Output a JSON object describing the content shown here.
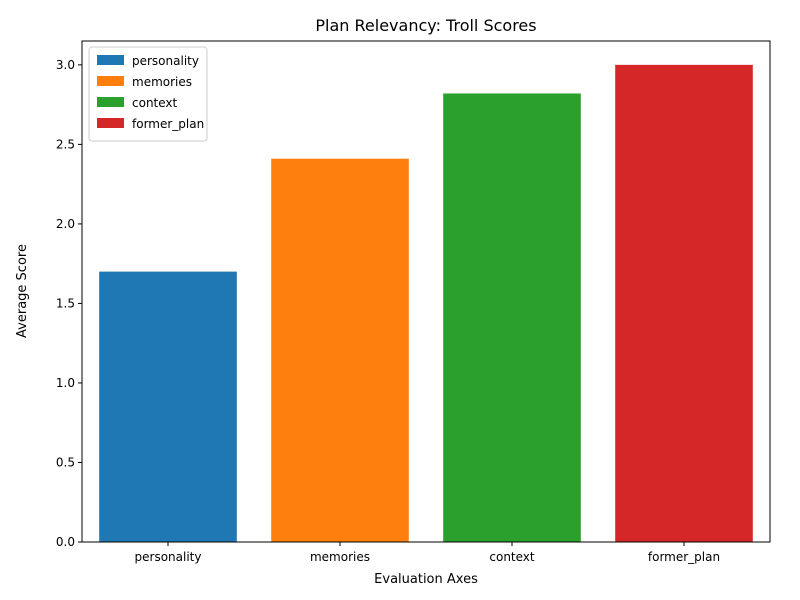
{
  "chart_data": {
    "type": "bar",
    "title": "Plan Relevancy: Troll Scores",
    "xlabel": "Evaluation Axes",
    "ylabel": "Average Score",
    "categories": [
      "personality",
      "memories",
      "context",
      "former_plan"
    ],
    "values": [
      1.7,
      2.41,
      2.82,
      3.0
    ],
    "colors": [
      "#1f77b4",
      "#ff7f0e",
      "#2ca02c",
      "#d62728"
    ],
    "ylim": [
      0,
      3.15
    ],
    "yticks": [
      "0.0",
      "0.5",
      "1.0",
      "1.5",
      "2.0",
      "2.5",
      "3.0"
    ],
    "legend": {
      "placement": "top-left",
      "entries": [
        "personality",
        "memories",
        "context",
        "former_plan"
      ]
    },
    "grid": false
  }
}
